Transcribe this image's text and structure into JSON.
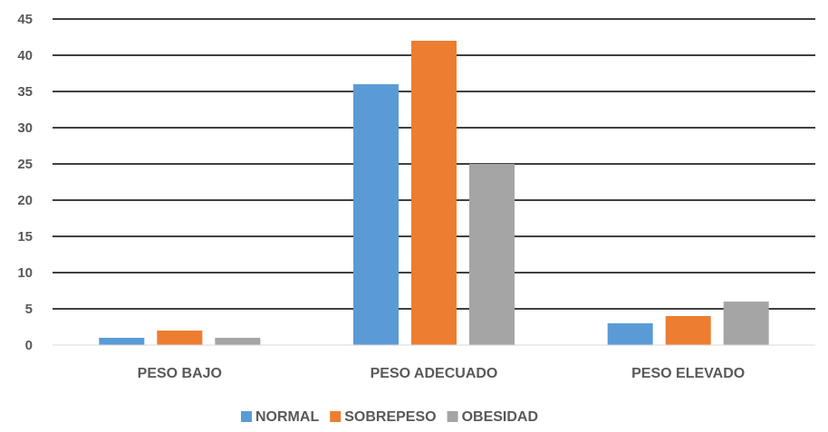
{
  "chart_data": {
    "type": "bar",
    "title": "",
    "xlabel": "",
    "ylabel": "",
    "categories": [
      "PESO BAJO",
      "PESO ADECUADO",
      "PESO ELEVADO"
    ],
    "series": [
      {
        "name": "NORMAL",
        "color": "#5b9bd5",
        "values": [
          1,
          36,
          3
        ]
      },
      {
        "name": "SOBREPESO",
        "color": "#ed7d31",
        "values": [
          2,
          42,
          4
        ]
      },
      {
        "name": "OBESIDAD",
        "color": "#a5a5a5",
        "values": [
          1,
          25,
          6
        ]
      }
    ],
    "ylim": [
      0,
      45
    ],
    "yticks": [
      0,
      5,
      10,
      15,
      20,
      25,
      30,
      35,
      40,
      45
    ],
    "grid": true,
    "legend": "bottom"
  }
}
